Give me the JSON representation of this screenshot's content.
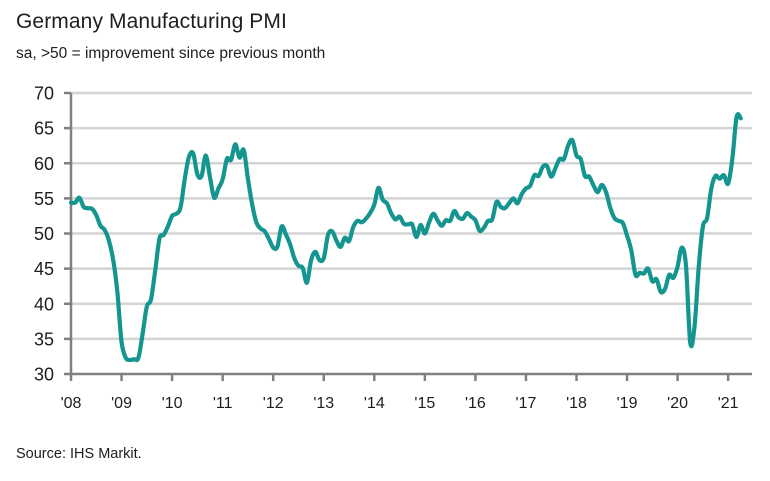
{
  "chart_data": {
    "type": "line",
    "title": "Germany Manufacturing PMI",
    "subtitle": "sa, >50 = improvement since previous month",
    "source": "Source: IHS Markit.",
    "xlabel": "",
    "ylabel": "",
    "ylim": [
      30,
      70
    ],
    "yticks": [
      30,
      35,
      40,
      45,
      50,
      55,
      60,
      65,
      70
    ],
    "ytick_labels": [
      "30",
      "35",
      "40",
      "45",
      "50",
      "55",
      "60",
      "65",
      "70"
    ],
    "xticks": [
      "'08",
      "'09",
      "'10",
      "'11",
      "'12",
      "'13",
      "'14",
      "'15",
      "'16",
      "'17",
      "'18",
      "'19",
      "'20",
      "'21"
    ],
    "x_start": "2008-01",
    "x_frequency": "monthly",
    "grid": true,
    "line_color": "#14958f",
    "grid_color": "#d4d4d4",
    "axis_color": "#808080",
    "series": [
      {
        "name": "Germany Manufacturing PMI",
        "values": [
          54.4,
          54.4,
          55.1,
          53.8,
          53.6,
          53.5,
          52.6,
          51.1,
          50.5,
          49.0,
          46.3,
          41.8,
          34.6,
          32.3,
          32.0,
          32.1,
          32.3,
          35.7,
          39.6,
          40.6,
          44.8,
          49.3,
          49.8,
          51.0,
          52.5,
          52.8,
          53.7,
          57.7,
          60.9,
          61.4,
          58.4,
          58.2,
          61.1,
          58.0,
          55.1,
          56.4,
          57.7,
          60.6,
          60.5,
          62.7,
          60.8,
          61.9,
          57.8,
          54.2,
          51.6,
          50.7,
          50.3,
          49.2,
          48.0,
          48.1,
          51.0,
          49.9,
          48.5,
          46.5,
          45.4,
          45.1,
          43.0,
          46.2,
          47.4,
          46.2,
          46.5,
          49.8,
          50.3,
          49.0,
          48.1,
          49.4,
          48.9,
          50.9,
          51.8,
          51.6,
          52.1,
          52.9,
          54.1,
          56.5,
          54.8,
          54.3,
          52.9,
          52.0,
          52.4,
          51.4,
          51.3,
          51.3,
          49.5,
          51.2,
          50.0,
          51.6,
          52.8,
          51.9,
          51.1,
          51.9,
          51.8,
          53.2,
          52.3,
          52.1,
          52.9,
          52.4,
          51.9,
          50.4,
          50.8,
          51.8,
          52.0,
          54.5,
          53.8,
          53.6,
          54.3,
          55.0,
          54.3,
          55.6,
          56.4,
          56.8,
          58.3,
          58.2,
          59.5,
          59.6,
          58.1,
          59.3,
          60.6,
          60.6,
          62.5,
          63.3,
          61.1,
          60.6,
          58.2,
          58.1,
          56.9,
          55.9,
          56.9,
          55.9,
          53.7,
          52.2,
          51.8,
          51.5,
          49.7,
          47.6,
          44.1,
          44.4,
          44.3,
          45.0,
          43.2,
          43.5,
          41.7,
          42.1,
          44.1,
          43.7,
          45.3,
          48.0,
          45.4,
          34.5,
          36.6,
          45.2,
          51.0,
          52.2,
          56.4,
          58.2,
          57.8,
          58.3,
          57.1,
          60.7,
          66.6,
          66.4
        ]
      }
    ]
  }
}
